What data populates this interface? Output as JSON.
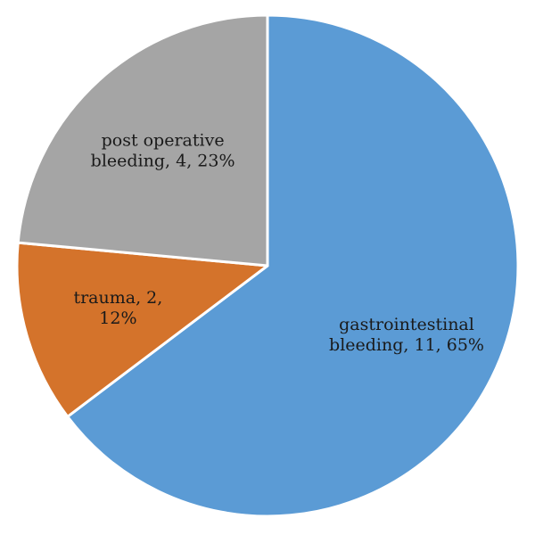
{
  "chart_data": {
    "type": "pie",
    "title": "",
    "start_angle_deg": 0,
    "direction": "clockwise",
    "slices": [
      {
        "category": "gastrointestinal bleeding",
        "value": 11,
        "percent_label": "65%",
        "color": "#5b9bd5",
        "label_lines": [
          "gastrointestinal",
          "bleeding, 11, 65%"
        ]
      },
      {
        "category": "trauma",
        "value": 2,
        "percent_label": "12%",
        "color": "#d4732b",
        "label_lines": [
          "trauma, 2,",
          "12%"
        ]
      },
      {
        "category": "post operative bleeding",
        "value": 4,
        "percent_label": "23%",
        "color": "#a5a5a5",
        "label_lines": [
          "post operative",
          "bleeding, 4, 23%"
        ]
      }
    ]
  }
}
